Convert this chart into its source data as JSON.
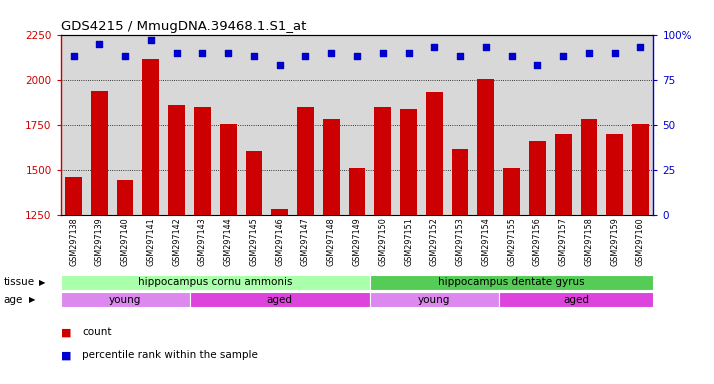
{
  "title": "GDS4215 / MmugDNA.39468.1.S1_at",
  "samples": [
    "GSM297138",
    "GSM297139",
    "GSM297140",
    "GSM297141",
    "GSM297142",
    "GSM297143",
    "GSM297144",
    "GSM297145",
    "GSM297146",
    "GSM297147",
    "GSM297148",
    "GSM297149",
    "GSM297150",
    "GSM297151",
    "GSM297152",
    "GSM297153",
    "GSM297154",
    "GSM297155",
    "GSM297156",
    "GSM297157",
    "GSM297158",
    "GSM297159",
    "GSM297160"
  ],
  "counts": [
    1460,
    1940,
    1445,
    2115,
    1860,
    1850,
    1755,
    1605,
    1285,
    1850,
    1780,
    1510,
    1850,
    1840,
    1930,
    1615,
    2005,
    1510,
    1660,
    1700,
    1780,
    1700,
    1755
  ],
  "percentiles": [
    88,
    95,
    88,
    97,
    90,
    90,
    90,
    88,
    83,
    88,
    90,
    88,
    90,
    90,
    93,
    88,
    93,
    88,
    83,
    88,
    90,
    90,
    93
  ],
  "ylim_left": [
    1250,
    2250
  ],
  "ylim_right": [
    0,
    100
  ],
  "yticks_left": [
    1250,
    1500,
    1750,
    2000,
    2250
  ],
  "yticks_right": [
    0,
    25,
    50,
    75,
    100
  ],
  "ytick_labels_right": [
    "0",
    "25",
    "50",
    "75",
    "100%"
  ],
  "bar_color": "#cc0000",
  "dot_color": "#0000cc",
  "bg_color": "#d8d8d8",
  "tissue_groups": [
    {
      "label": "hippocampus cornu ammonis",
      "start": 0,
      "end": 12,
      "color": "#aaffaa"
    },
    {
      "label": "hippocampus dentate gyrus",
      "start": 12,
      "end": 23,
      "color": "#55cc55"
    }
  ],
  "age_groups": [
    {
      "label": "young",
      "start": 0,
      "end": 5,
      "color": "#dd88ee"
    },
    {
      "label": "aged",
      "start": 5,
      "end": 12,
      "color": "#dd44dd"
    },
    {
      "label": "young",
      "start": 12,
      "end": 17,
      "color": "#dd88ee"
    },
    {
      "label": "aged",
      "start": 17,
      "end": 23,
      "color": "#dd44dd"
    }
  ],
  "legend_count_color": "#cc0000",
  "legend_dot_color": "#0000cc",
  "tissue_label": "tissue",
  "age_label": "age"
}
